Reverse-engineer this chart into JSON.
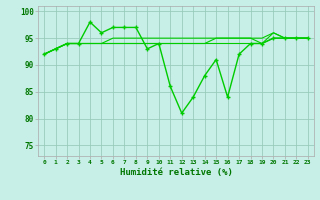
{
  "x": [
    0,
    1,
    2,
    3,
    4,
    5,
    6,
    7,
    8,
    9,
    10,
    11,
    12,
    13,
    14,
    15,
    16,
    17,
    18,
    19,
    20,
    21,
    22,
    23
  ],
  "series": [
    [
      92,
      93,
      94,
      94,
      98,
      96,
      97,
      97,
      97,
      93,
      94,
      86,
      81,
      84,
      88,
      91,
      84,
      92,
      94,
      94,
      95,
      95,
      95,
      95
    ],
    [
      92,
      93,
      94,
      94,
      94,
      94,
      94,
      94,
      94,
      94,
      94,
      94,
      94,
      94,
      94,
      94,
      94,
      94,
      94,
      94,
      95,
      95,
      95,
      95
    ],
    [
      92,
      93,
      94,
      94,
      94,
      94,
      94,
      94,
      94,
      94,
      94,
      94,
      94,
      94,
      94,
      95,
      95,
      95,
      95,
      95,
      96,
      95,
      95,
      95
    ],
    [
      92,
      93,
      94,
      94,
      94,
      94,
      95,
      95,
      95,
      95,
      95,
      95,
      95,
      95,
      95,
      95,
      95,
      95,
      95,
      94,
      96,
      95,
      95,
      95
    ]
  ],
  "line_color": "#00cc00",
  "marker": "+",
  "bg_color": "#c8eee8",
  "grid_color": "#99ccbb",
  "ylim": [
    73,
    101
  ],
  "xlim": [
    -0.5,
    23.5
  ],
  "xlabel": "Humidité relative (%)",
  "font_color": "#007700",
  "yticks": [
    75,
    80,
    85,
    90,
    95,
    100
  ],
  "markersize": 3.5,
  "linewidth_main": 1.0,
  "linewidth_flat": 0.8
}
